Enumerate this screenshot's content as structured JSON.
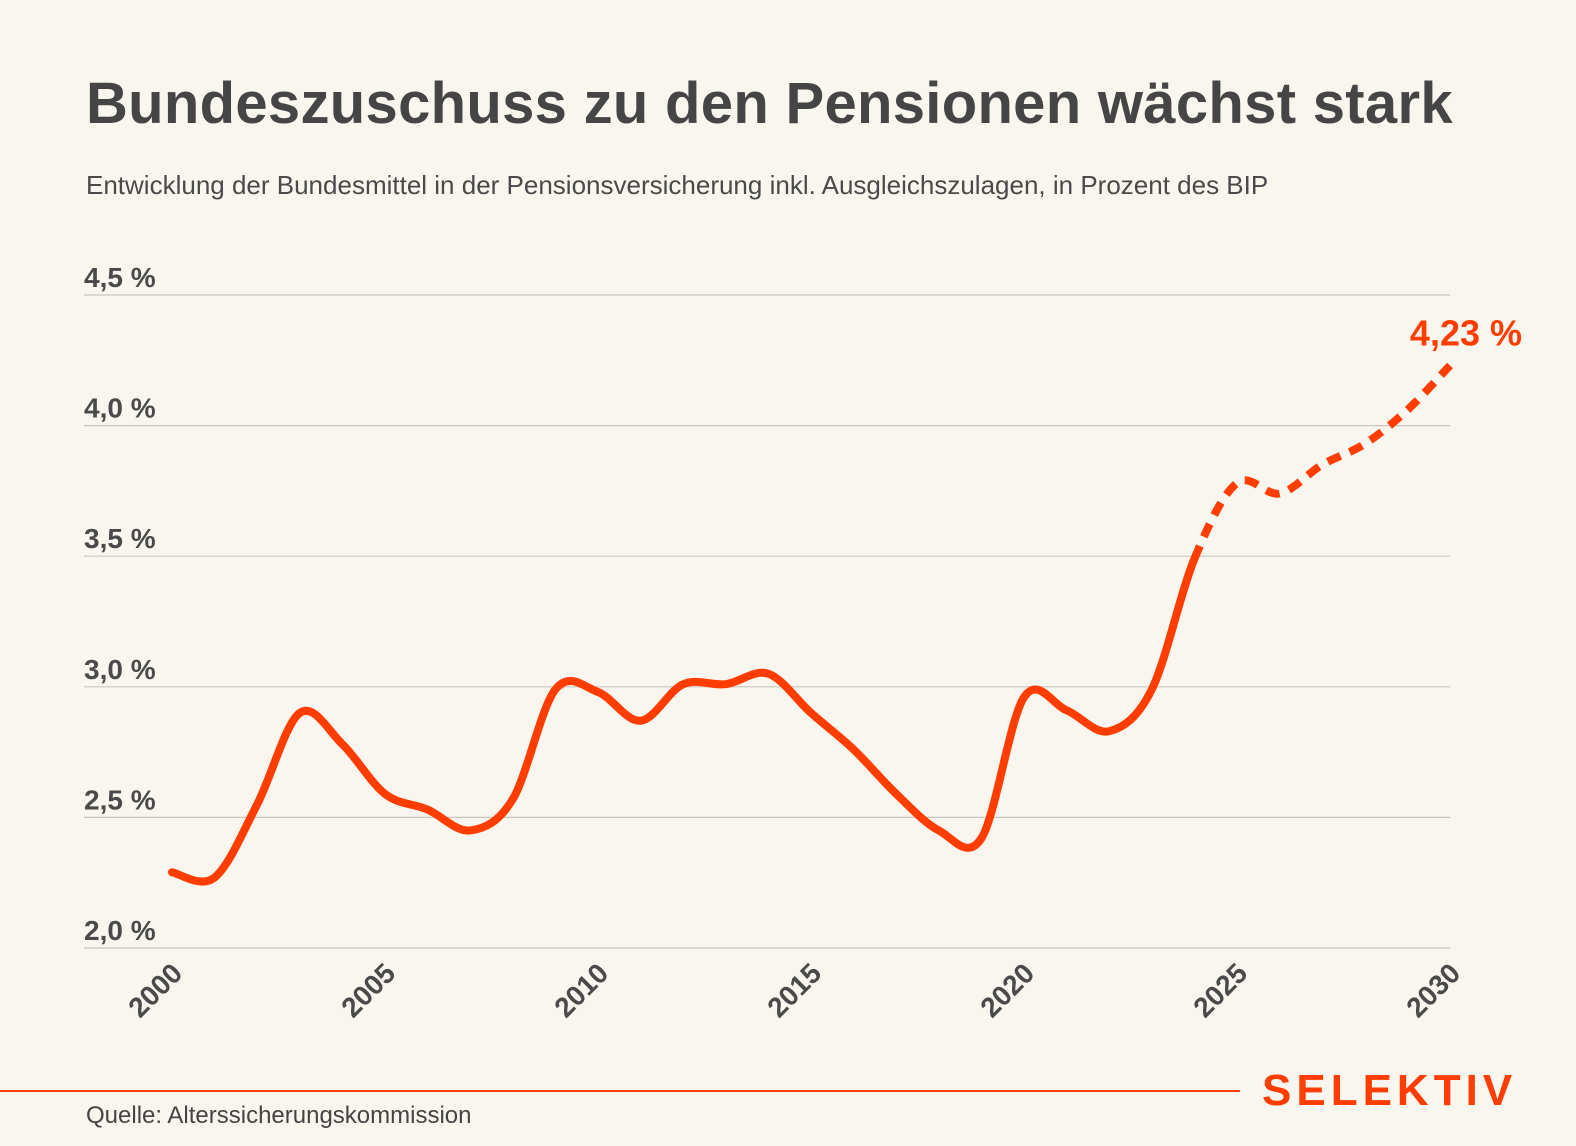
{
  "title": "Bundeszuschuss zu den Pensionen wächst stark",
  "subtitle": "Entwicklung der Bundesmittel in der Pensionsversicherung inkl. Ausgleichszulagen, in Prozent des BIP",
  "source": "Quelle: Alterssicherungskommission",
  "logo": "SELEKTIV",
  "colors": {
    "accent": "#ff3d00",
    "background": "#f8f6ee",
    "text": "#454545",
    "grid": "#c8c8c0"
  },
  "chart_data": {
    "type": "line",
    "title": "Bundeszuschuss zu den Pensionen wächst stark",
    "xlabel": "",
    "ylabel": "",
    "xlim": [
      2000,
      2030
    ],
    "ylim": [
      2.0,
      4.5
    ],
    "grid": true,
    "yticks": [
      2.0,
      2.5,
      3.0,
      3.5,
      4.0,
      4.5
    ],
    "ytick_labels": [
      "2,0 %",
      "2,5 %",
      "3,0 %",
      "3,5 %",
      "4,0 %",
      "4,5 %"
    ],
    "xticks": [
      2000,
      2005,
      2010,
      2015,
      2020,
      2025,
      2030
    ],
    "xtick_labels": [
      "2000",
      "2005",
      "2010",
      "2015",
      "2020",
      "2025",
      "2030"
    ],
    "forecast_from": 2024,
    "x": [
      2000,
      2001,
      2002,
      2003,
      2004,
      2005,
      2006,
      2007,
      2008,
      2009,
      2010,
      2011,
      2012,
      2013,
      2014,
      2015,
      2016,
      2017,
      2018,
      2019,
      2020,
      2021,
      2022,
      2023,
      2024,
      2025,
      2026,
      2027,
      2028,
      2029,
      2030
    ],
    "series": [
      {
        "name": "Bundesmittel in % des BIP",
        "values": [
          2.29,
          2.27,
          2.55,
          2.9,
          2.78,
          2.59,
          2.53,
          2.45,
          2.57,
          2.99,
          2.98,
          2.87,
          3.01,
          3.01,
          3.05,
          2.9,
          2.76,
          2.59,
          2.45,
          2.42,
          2.96,
          2.91,
          2.83,
          2.99,
          3.49,
          3.78,
          3.74,
          3.85,
          3.93,
          4.06,
          4.23
        ]
      }
    ],
    "annotation": {
      "text": "4,23 %",
      "x": 2030,
      "y": 4.23
    }
  }
}
